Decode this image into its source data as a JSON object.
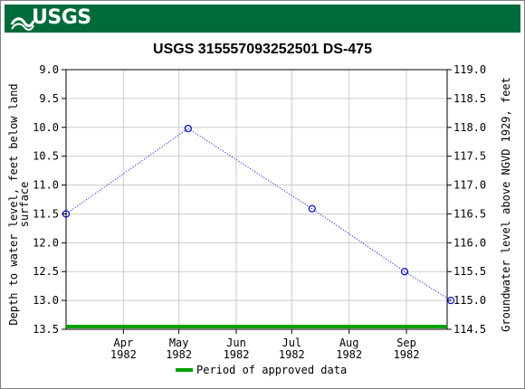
{
  "header": {
    "logo_text": "USGS"
  },
  "chart_data": {
    "type": "line",
    "title": "USGS 315557093252501 DS-475",
    "ylabel_left_line1": "Depth to water level, feet below land",
    "ylabel_left_line2": "surface",
    "ylabel_right": "Groundwater level above NGVD 1929, feet",
    "xlabel": "",
    "left_axis": {
      "min": 9.0,
      "max": 13.5,
      "inverted": true,
      "ticks": [
        "9.0",
        "9.5",
        "10.0",
        "10.5",
        "11.0",
        "11.5",
        "12.0",
        "12.5",
        "13.0",
        "13.5"
      ]
    },
    "right_axis": {
      "min": 114.5,
      "max": 119.0,
      "ticks": [
        "119.0",
        "118.5",
        "118.0",
        "117.5",
        "117.0",
        "116.5",
        "116.0",
        "115.5",
        "115.0",
        "114.5"
      ]
    },
    "x_ticks": [
      {
        "month": "Apr",
        "year": "1982",
        "day": 31
      },
      {
        "month": "May",
        "year": "1982",
        "day": 61
      },
      {
        "month": "Jun",
        "year": "1982",
        "day": 92
      },
      {
        "month": "Jul",
        "year": "1982",
        "day": 122
      },
      {
        "month": "Aug",
        "year": "1982",
        "day": 153
      },
      {
        "month": "Sep",
        "year": "1982",
        "day": 184
      }
    ],
    "x_range": {
      "start": 0,
      "end": 206
    },
    "series": [
      {
        "values": [
          {
            "date": "1982-03-01",
            "depth": 11.5
          },
          {
            "date": "1982-05-06",
            "depth": 10.02
          },
          {
            "date": "1982-07-12",
            "depth": 11.41
          },
          {
            "date": "1982-08-31",
            "depth": 12.5
          },
          {
            "date": "1982-09-25",
            "depth": 13.0
          }
        ]
      }
    ],
    "approved_period": {
      "label": "Period of approved data",
      "color": "#00a000"
    },
    "line_color": "#0000cc",
    "grid": true
  }
}
